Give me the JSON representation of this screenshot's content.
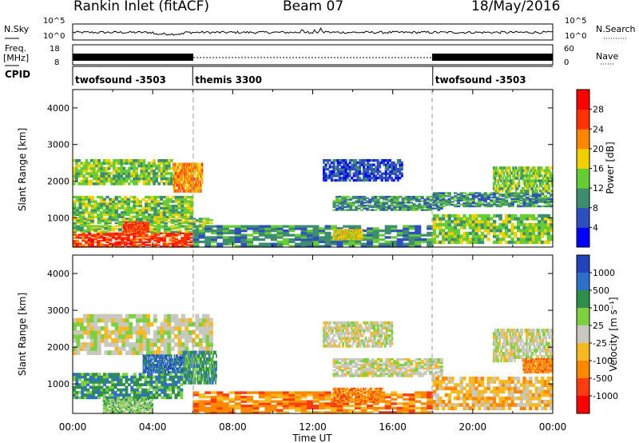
{
  "header": {
    "station": "Rankin Inlet (fitACF)",
    "beam": "Beam 07",
    "date": "18/May/2016"
  },
  "top_panels": {
    "nsky_label": "N.Sky",
    "nsearch_label": "N.Search",
    "noise_scale_top": "10^5",
    "noise_scale_bottom": "10^0",
    "freq_label": "Freq.",
    "freq_unit": "[MHz]",
    "freq_ticks": [
      "18",
      "8"
    ],
    "nave_label": "Nave",
    "nave_ticks": [
      "60",
      "0"
    ],
    "cpid_label": "CPID",
    "cpid_segments": [
      {
        "label": "twofsound -3503",
        "start": 0,
        "end": 6
      },
      {
        "label": "themis 3300",
        "start": 6,
        "end": 18
      },
      {
        "label": "twofsound -3503",
        "start": 18,
        "end": 24
      }
    ]
  },
  "colors": {
    "power": [
      "#0000ff",
      "#2f4fc0",
      "#3e8d6e",
      "#66cc33",
      "#f0d000",
      "#ff8800",
      "#ff3300",
      "#ff0000"
    ],
    "velocity": [
      "#2243bb",
      "#2f6fcc",
      "#2e8f4a",
      "#7ed040",
      "#c8c8c0",
      "#f7b820",
      "#ff8800",
      "#ff3b10",
      "#ff0000"
    ]
  },
  "chart_data": [
    {
      "type": "heatmap",
      "name": "power",
      "ylabel": "Slant Range [km]",
      "ylim": [
        200,
        4500
      ],
      "yticks": [
        "1000",
        "2000",
        "3000",
        "4000"
      ],
      "xlabel": "Time UT",
      "xlim": [
        0,
        24
      ],
      "xticks": [
        "00:00",
        "04:00",
        "08:00",
        "12:00",
        "16:00",
        "20:00",
        "00:00"
      ],
      "colorbar_label": "Power [dB]",
      "colorbar_ticks": [
        "4",
        "8",
        "12",
        "16",
        "20",
        "24",
        "28"
      ],
      "regions": [
        {
          "t0": 0.0,
          "t1": 6.0,
          "r0": 200,
          "r1": 600,
          "value": 26
        },
        {
          "t0": 0.0,
          "t1": 7.0,
          "r0": 600,
          "r1": 1000,
          "value": 14
        },
        {
          "t0": 0.0,
          "t1": 6.0,
          "r0": 1000,
          "r1": 1600,
          "value": 12
        },
        {
          "t0": 0.0,
          "t1": 5.0,
          "r0": 1900,
          "r1": 2600,
          "value": 14
        },
        {
          "t0": 5.0,
          "t1": 6.5,
          "r0": 1700,
          "r1": 2500,
          "value": 20
        },
        {
          "t0": 2.5,
          "t1": 3.8,
          "r0": 600,
          "r1": 900,
          "value": 24
        },
        {
          "t0": 6.0,
          "t1": 18.0,
          "r0": 200,
          "r1": 800,
          "value": 8
        },
        {
          "t0": 13.0,
          "t1": 18.5,
          "r0": 1200,
          "r1": 1600,
          "value": 10
        },
        {
          "t0": 12.5,
          "t1": 16.5,
          "r0": 2000,
          "r1": 2600,
          "value": 6
        },
        {
          "t0": 13.0,
          "t1": 14.5,
          "r0": 400,
          "r1": 700,
          "value": 18
        },
        {
          "t0": 18.0,
          "t1": 24.0,
          "r0": 300,
          "r1": 1100,
          "value": 12
        },
        {
          "t0": 18.0,
          "t1": 24.0,
          "r0": 1300,
          "r1": 1700,
          "value": 10
        },
        {
          "t0": 21.0,
          "t1": 24.0,
          "r0": 1700,
          "r1": 2400,
          "value": 14
        }
      ]
    },
    {
      "type": "heatmap",
      "name": "velocity",
      "ylabel": "Slant Range [km]",
      "ylim": [
        200,
        4500
      ],
      "yticks": [
        "1000",
        "2000",
        "3000",
        "4000"
      ],
      "xlabel": "Time UT",
      "xlim": [
        0,
        24
      ],
      "xticks": [
        "00:00",
        "04:00",
        "08:00",
        "12:00",
        "16:00",
        "20:00",
        "00:00"
      ],
      "colorbar_label": "Velocity [m s⁻¹]",
      "colorbar_ticks": [
        "1000",
        "500",
        "100",
        "25",
        "-25",
        "-100",
        "-500",
        "-1000"
      ],
      "regions": [
        {
          "t0": 0.0,
          "t1": 7.0,
          "r0": 1800,
          "r1": 2900,
          "value": 0
        },
        {
          "t0": 0.0,
          "t1": 5.5,
          "r0": 600,
          "r1": 1300,
          "value": 200
        },
        {
          "t0": 5.5,
          "t1": 7.2,
          "r0": 1000,
          "r1": 1900,
          "value": 300
        },
        {
          "t0": 3.5,
          "t1": 5.5,
          "r0": 1300,
          "r1": 1800,
          "value": 800
        },
        {
          "t0": 1.5,
          "t1": 4.0,
          "r0": 200,
          "r1": 600,
          "value": 60
        },
        {
          "t0": 6.0,
          "t1": 18.0,
          "r0": 200,
          "r1": 800,
          "value": -150
        },
        {
          "t0": 13.0,
          "t1": 15.5,
          "r0": 500,
          "r1": 900,
          "value": -400
        },
        {
          "t0": 13.0,
          "t1": 18.5,
          "r0": 1200,
          "r1": 1700,
          "value": 0
        },
        {
          "t0": 12.5,
          "t1": 16.0,
          "r0": 2000,
          "r1": 2700,
          "value": 0
        },
        {
          "t0": 18.0,
          "t1": 24.0,
          "r0": 300,
          "r1": 1200,
          "value": -80
        },
        {
          "t0": 21.0,
          "t1": 24.0,
          "r0": 1600,
          "r1": 2500,
          "value": 0
        },
        {
          "t0": 22.5,
          "t1": 24.0,
          "r0": 1300,
          "r1": 1700,
          "value": -300
        }
      ]
    }
  ]
}
